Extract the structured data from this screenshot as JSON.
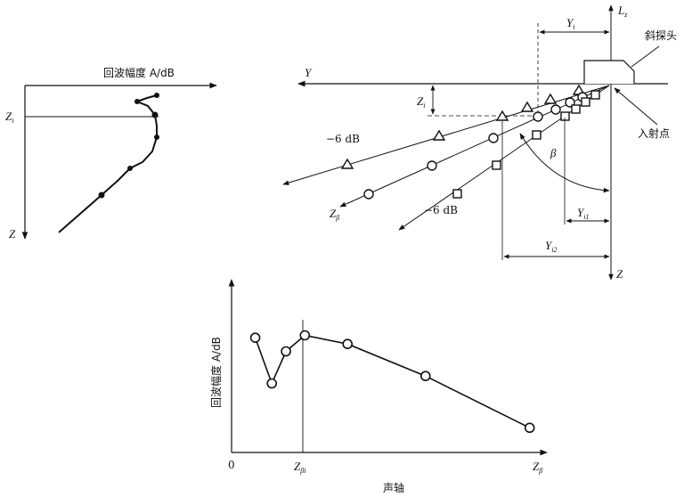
{
  "left_plot": {
    "amplitude_label": "回波幅度 A/dB",
    "zi_label": "Z",
    "zi_sub": "i",
    "z_label": "Z"
  },
  "right_diagram": {
    "y_axis": "Y",
    "z_axis": "Z",
    "lz_label": "L",
    "lz_sub": "z",
    "yi_label": "Y",
    "yi_sub": "i",
    "yi1_label": "Y",
    "yi1_sub": "i1",
    "yi2_label": "Y",
    "yi2_sub": "i2",
    "zi_label": "Z",
    "zi_sub": "i",
    "beta": "β",
    "z_beta_label": "Z",
    "z_beta_sub": "β",
    "probe_label": "斜探头",
    "entry_point_label": "入射点",
    "minus6_upper": "−6 dB",
    "minus6_lower": "−6 dB"
  },
  "bottom_chart": {
    "ylabel": "回波幅度 A/dB",
    "xlabel": "声轴",
    "origin": "0",
    "z_beta_i": "Z",
    "z_beta_i_sub": "βi",
    "z_beta": "Z",
    "z_beta_sub": "β"
  },
  "chart_data": {
    "type": "line",
    "title": "",
    "xlabel": "声轴",
    "ylabel": "回波幅度 A/dB",
    "x": [
      0.1,
      0.17,
      0.23,
      0.31,
      0.49,
      0.82,
      1.26
    ],
    "values": [
      0.93,
      0.56,
      0.82,
      0.95,
      0.88,
      0.62,
      0.2
    ],
    "xlim": [
      0,
      1.28
    ],
    "ylim": [
      0,
      1.3
    ]
  }
}
